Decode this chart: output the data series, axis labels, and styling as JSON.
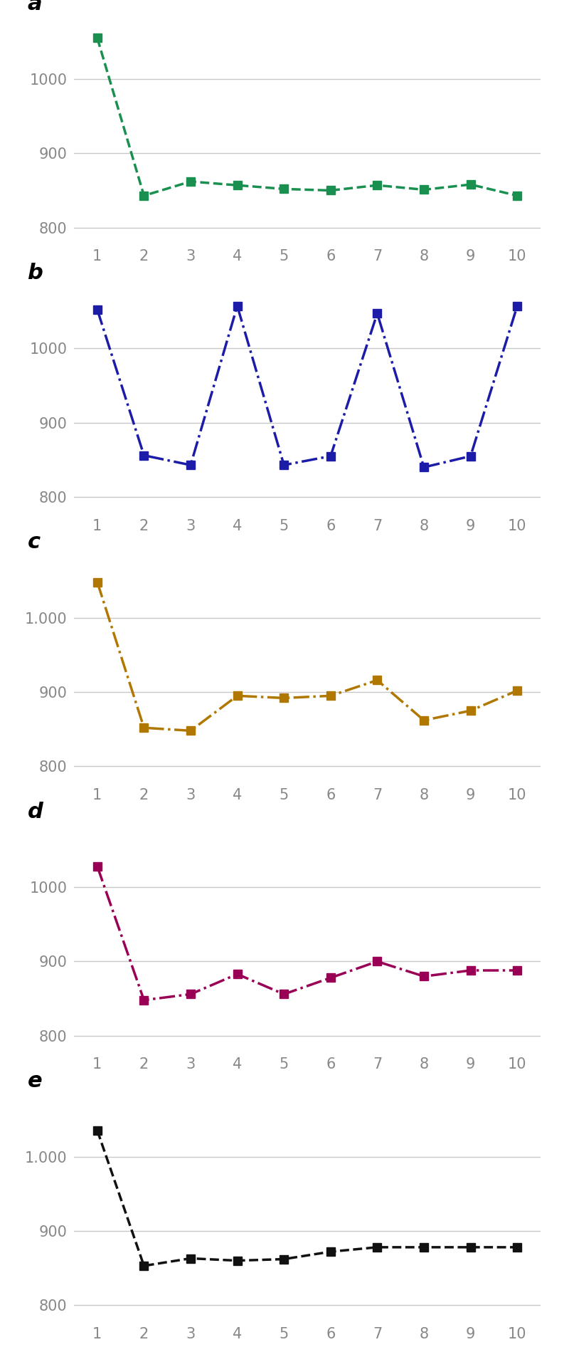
{
  "panels": [
    {
      "label": "a",
      "color": "#1a9050",
      "linestyle": "--",
      "values": [
        1055,
        843,
        862,
        857,
        852,
        850,
        857,
        851,
        858,
        843
      ],
      "ylim": [
        780,
        1070
      ],
      "yticks": [
        800,
        900,
        1000
      ],
      "ytick_labels": [
        "800",
        "900",
        "1000"
      ]
    },
    {
      "label": "b",
      "color": "#1c1ca8",
      "linestyle": "-.",
      "values": [
        1052,
        856,
        843,
        1057,
        843,
        855,
        1047,
        840,
        855,
        1057
      ],
      "ylim": [
        780,
        1070
      ],
      "yticks": [
        800,
        900,
        1000
      ],
      "ytick_labels": [
        "800",
        "900",
        "1000"
      ]
    },
    {
      "label": "c",
      "color": "#b07800",
      "linestyle": "-.",
      "values": [
        1048,
        852,
        848,
        895,
        892,
        895,
        916,
        862,
        875,
        902
      ],
      "ylim": [
        780,
        1070
      ],
      "yticks": [
        800,
        900,
        1000
      ],
      "ytick_labels": [
        "800",
        "900",
        "1.000"
      ]
    },
    {
      "label": "d",
      "color": "#990055",
      "linestyle": "-.",
      "values": [
        1028,
        848,
        856,
        883,
        856,
        878,
        900,
        880,
        888,
        888
      ],
      "ylim": [
        780,
        1070
      ],
      "yticks": [
        800,
        900,
        1000
      ],
      "ytick_labels": [
        "800",
        "900",
        "1000"
      ]
    },
    {
      "label": "e",
      "color": "#111111",
      "linestyle": "--",
      "values": [
        1035,
        853,
        863,
        860,
        862,
        872,
        878,
        878,
        878,
        878
      ],
      "ylim": [
        780,
        1070
      ],
      "yticks": [
        800,
        900,
        1000
      ],
      "ytick_labels": [
        "800",
        "900",
        "1.000"
      ]
    }
  ],
  "x": [
    1,
    2,
    3,
    4,
    5,
    6,
    7,
    8,
    9,
    10
  ],
  "marker": "s",
  "markersize": 8,
  "linewidth": 2.5,
  "figure_bg": "#ffffff",
  "axes_bg": "#ffffff",
  "grid_color": "#c8c8c8",
  "label_fontsize": 22,
  "tick_fontsize": 15
}
